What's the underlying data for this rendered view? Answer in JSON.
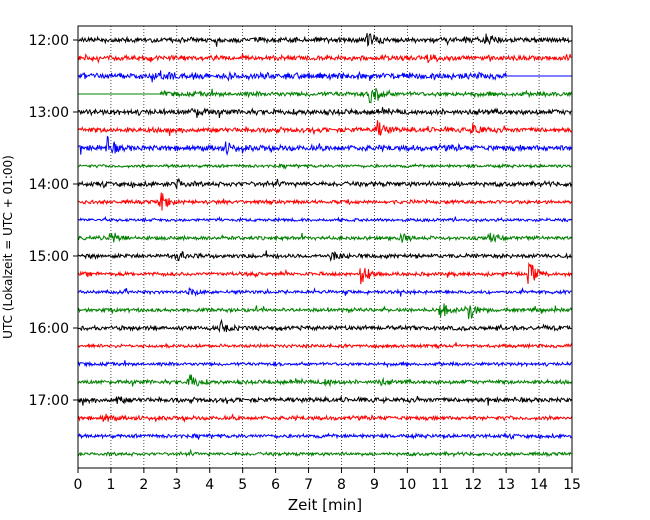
{
  "chart_data": {
    "type": "line",
    "title": "",
    "xlabel": "Zeit  [min]",
    "ylabel": "UTC (Lokalzeit = UTC + 01:00)",
    "xlim": [
      0,
      15
    ],
    "x_ticks": [
      0,
      1,
      2,
      3,
      4,
      5,
      6,
      7,
      8,
      9,
      10,
      11,
      12,
      13,
      14,
      15
    ],
    "y_ticks": [
      "12:00",
      "13:00",
      "14:00",
      "15:00",
      "16:00",
      "17:00"
    ],
    "grid": "vertical dotted",
    "colors": [
      "#000000",
      "#ff0000",
      "#0000ff",
      "#008000"
    ],
    "traces": [
      {
        "start": "12:00",
        "color": "#000000",
        "noise": 0.3,
        "events": [
          {
            "t": 8.8,
            "amp": 1.0
          },
          {
            "t": 12.4,
            "amp": 0.9
          }
        ]
      },
      {
        "start": "12:15",
        "color": "#ff0000",
        "noise": 0.28,
        "events": [
          {
            "t": 10.6,
            "amp": 0.8
          },
          {
            "t": 14.9,
            "amp": 0.8
          }
        ]
      },
      {
        "start": "12:30",
        "color": "#0000ff",
        "noise": 0.38,
        "data_until": 13.0,
        "events": [
          {
            "t": 2.5,
            "amp": 0.6
          }
        ]
      },
      {
        "start": "12:45",
        "color": "#008000",
        "noise": 0.28,
        "data_from": 2.5,
        "events": [
          {
            "t": 8.9,
            "amp": 2.4
          }
        ]
      },
      {
        "start": "13:00",
        "color": "#000000",
        "noise": 0.32,
        "events": [
          {
            "t": 3.5,
            "amp": 0.8
          }
        ]
      },
      {
        "start": "13:15",
        "color": "#ff0000",
        "noise": 0.3,
        "events": [
          {
            "t": 9.1,
            "amp": 1.2
          },
          {
            "t": 12.0,
            "amp": 0.9
          }
        ]
      },
      {
        "start": "13:30",
        "color": "#0000ff",
        "noise": 0.34,
        "events": [
          {
            "t": 0.9,
            "amp": 1.3
          },
          {
            "t": 4.5,
            "amp": 0.7
          }
        ]
      },
      {
        "start": "13:45",
        "color": "#008000",
        "noise": 0.18,
        "events": []
      },
      {
        "start": "14:00",
        "color": "#000000",
        "noise": 0.28,
        "events": [
          {
            "t": 3.0,
            "amp": 0.7
          }
        ]
      },
      {
        "start": "14:15",
        "color": "#ff0000",
        "noise": 0.22,
        "events": [
          {
            "t": 2.5,
            "amp": 1.7
          }
        ]
      },
      {
        "start": "14:30",
        "color": "#0000ff",
        "noise": 0.18,
        "events": []
      },
      {
        "start": "14:45",
        "color": "#008000",
        "noise": 0.22,
        "events": [
          {
            "t": 1.0,
            "amp": 1.4
          },
          {
            "t": 9.8,
            "amp": 0.7
          },
          {
            "t": 12.5,
            "amp": 0.5
          }
        ]
      },
      {
        "start": "15:00",
        "color": "#000000",
        "noise": 0.26,
        "events": [
          {
            "t": 3.0,
            "amp": 0.8
          },
          {
            "t": 7.7,
            "amp": 0.6
          }
        ]
      },
      {
        "start": "15:15",
        "color": "#ff0000",
        "noise": 0.22,
        "events": [
          {
            "t": 8.6,
            "amp": 1.6
          },
          {
            "t": 13.7,
            "amp": 1.9
          }
        ]
      },
      {
        "start": "15:30",
        "color": "#0000ff",
        "noise": 0.2,
        "events": [
          {
            "t": 3.4,
            "amp": 0.6
          }
        ]
      },
      {
        "start": "15:45",
        "color": "#008000",
        "noise": 0.22,
        "events": [
          {
            "t": 11.0,
            "amp": 1.4
          },
          {
            "t": 11.8,
            "amp": 2.2
          }
        ]
      },
      {
        "start": "16:00",
        "color": "#000000",
        "noise": 0.26,
        "events": [
          {
            "t": 4.3,
            "amp": 0.6
          }
        ]
      },
      {
        "start": "16:15",
        "color": "#ff0000",
        "noise": 0.2,
        "events": []
      },
      {
        "start": "16:30",
        "color": "#0000ff",
        "noise": 0.2,
        "events": []
      },
      {
        "start": "16:45",
        "color": "#008000",
        "noise": 0.24,
        "events": [
          {
            "t": 3.4,
            "amp": 1.3
          },
          {
            "t": 7.5,
            "amp": 0.6
          },
          {
            "t": 9.1,
            "amp": 0.6
          }
        ]
      },
      {
        "start": "17:00",
        "color": "#000000",
        "noise": 0.28,
        "events": [
          {
            "t": 1.2,
            "amp": 0.5
          }
        ]
      },
      {
        "start": "17:15",
        "color": "#ff0000",
        "noise": 0.24,
        "events": [
          {
            "t": 0.8,
            "amp": 0.6
          }
        ]
      },
      {
        "start": "17:30",
        "color": "#0000ff",
        "noise": 0.22,
        "events": []
      },
      {
        "start": "17:45",
        "color": "#008000",
        "noise": 0.2,
        "events": []
      }
    ]
  }
}
